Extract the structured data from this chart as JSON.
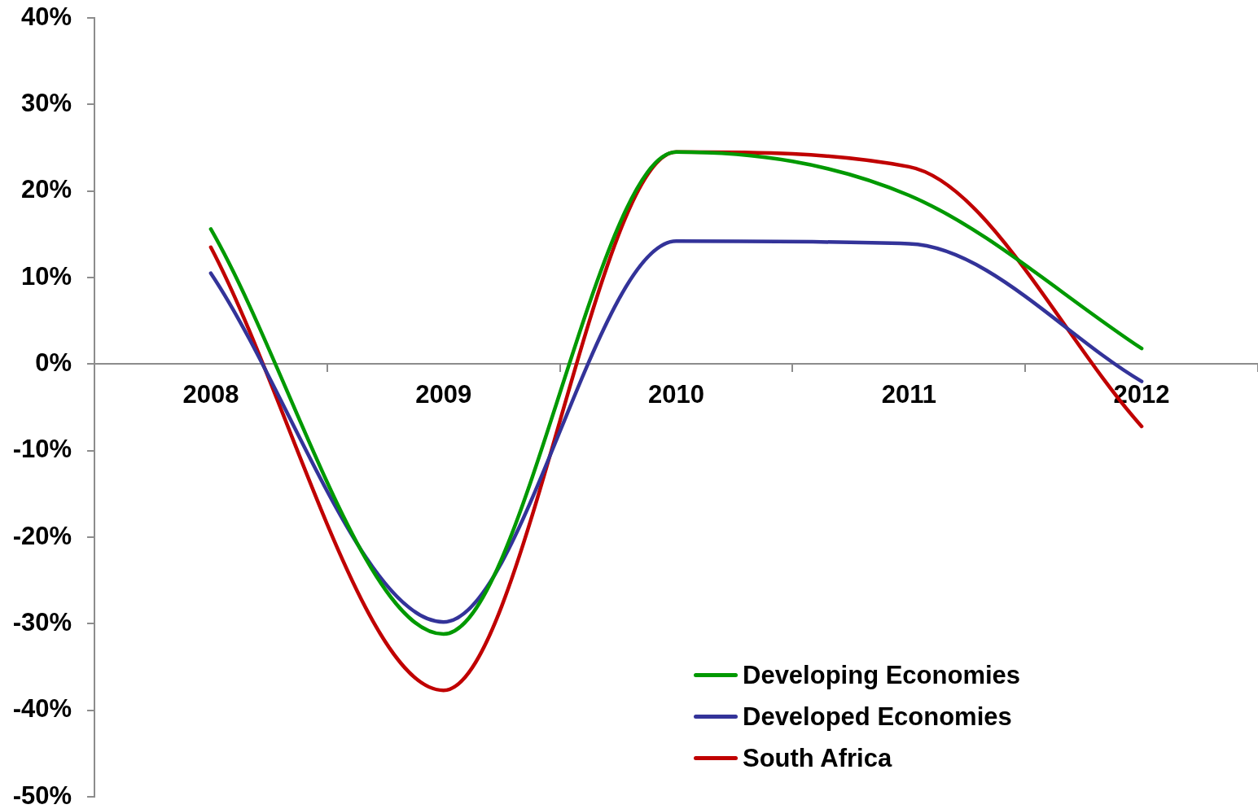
{
  "chart_data": {
    "type": "line",
    "categories": [
      "2008",
      "2009",
      "2010",
      "2011",
      "2012"
    ],
    "series": [
      {
        "name": "Developing Economies",
        "color": "#009900",
        "values": [
          15.6,
          -31.2,
          24.5,
          19.5,
          1.8
        ]
      },
      {
        "name": "Developed Economies",
        "color": "#333399",
        "values": [
          10.5,
          -29.8,
          14.2,
          13.9,
          -2.0
        ]
      },
      {
        "name": "South Africa",
        "color": "#c00000",
        "values": [
          13.5,
          -37.7,
          24.5,
          22.8,
          -7.2
        ]
      }
    ],
    "ylim": [
      -50,
      40
    ],
    "yticks": [
      {
        "value": -50,
        "label": "-50%"
      },
      {
        "value": -40,
        "label": "-40%"
      },
      {
        "value": -30,
        "label": "-30%"
      },
      {
        "value": -20,
        "label": "-20%"
      },
      {
        "value": -10,
        "label": "-10%"
      },
      {
        "value": 0,
        "label": "0%"
      },
      {
        "value": 10,
        "label": "10%"
      },
      {
        "value": 20,
        "label": "20%"
      },
      {
        "value": 30,
        "label": "30%"
      },
      {
        "value": 40,
        "label": "40%"
      }
    ],
    "legend": "bottom right",
    "marker": "none",
    "line_style": "solid"
  }
}
